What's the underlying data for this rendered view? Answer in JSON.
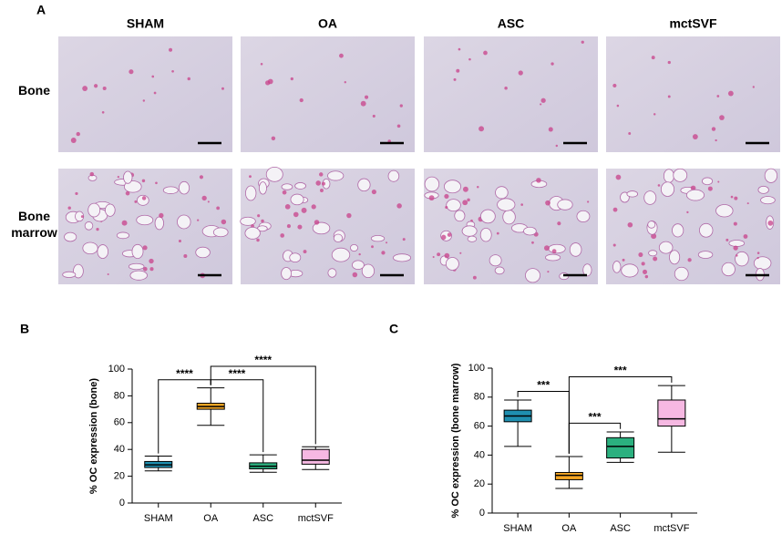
{
  "panel_a": {
    "label": "A",
    "columns": [
      "SHAM",
      "OA",
      "ASC",
      "mctSVF"
    ],
    "rows": [
      "Bone",
      "Bone marrow"
    ]
  },
  "chart_data": [
    {
      "type": "box",
      "panel": "B",
      "y_label": "% OC expression (bone)",
      "categories": [
        "SHAM",
        "OA",
        "ASC",
        "mctSVF"
      ],
      "colors": [
        "#1f8fb0",
        "#f5a623",
        "#2bb07f",
        "#f6b8e2"
      ],
      "boxes": [
        {
          "min": 24,
          "q1": 26.5,
          "median": 28.5,
          "q3": 31,
          "max": 35
        },
        {
          "min": 58,
          "q1": 70,
          "median": 72,
          "q3": 74.5,
          "max": 86
        },
        {
          "min": 23,
          "q1": 25.5,
          "median": 27.5,
          "q3": 30,
          "max": 36
        },
        {
          "min": 25,
          "q1": 29,
          "median": 32,
          "q3": 40,
          "max": 42
        }
      ],
      "ylim": [
        0,
        100
      ],
      "yticks": [
        0,
        20,
        40,
        60,
        80,
        100
      ],
      "significance": [
        {
          "groups": [
            "SHAM",
            "OA"
          ],
          "label": "****"
        },
        {
          "groups": [
            "OA",
            "ASC"
          ],
          "label": "****"
        },
        {
          "groups": [
            "OA",
            "mctSVF"
          ],
          "label": "****"
        }
      ]
    },
    {
      "type": "box",
      "panel": "C",
      "y_label": "% OC expression (bone marrow)",
      "categories": [
        "SHAM",
        "OA",
        "ASC",
        "mctSVF"
      ],
      "colors": [
        "#1f8fb0",
        "#f5a623",
        "#2bb07f",
        "#f6b8e2"
      ],
      "boxes": [
        {
          "min": 46,
          "q1": 63,
          "median": 67,
          "q3": 71,
          "max": 78
        },
        {
          "min": 17,
          "q1": 23,
          "median": 26,
          "q3": 28,
          "max": 39
        },
        {
          "min": 35,
          "q1": 38,
          "median": 46,
          "q3": 52,
          "max": 56
        },
        {
          "min": 42,
          "q1": 60,
          "median": 65,
          "q3": 78,
          "max": 88
        }
      ],
      "ylim": [
        0,
        100
      ],
      "yticks": [
        0,
        20,
        40,
        60,
        80,
        100
      ],
      "significance": [
        {
          "groups": [
            "SHAM",
            "OA"
          ],
          "label": "***"
        },
        {
          "groups": [
            "OA",
            "ASC"
          ],
          "label": "***"
        },
        {
          "groups": [
            "OA",
            "mctSVF"
          ],
          "label": "***"
        }
      ]
    }
  ]
}
